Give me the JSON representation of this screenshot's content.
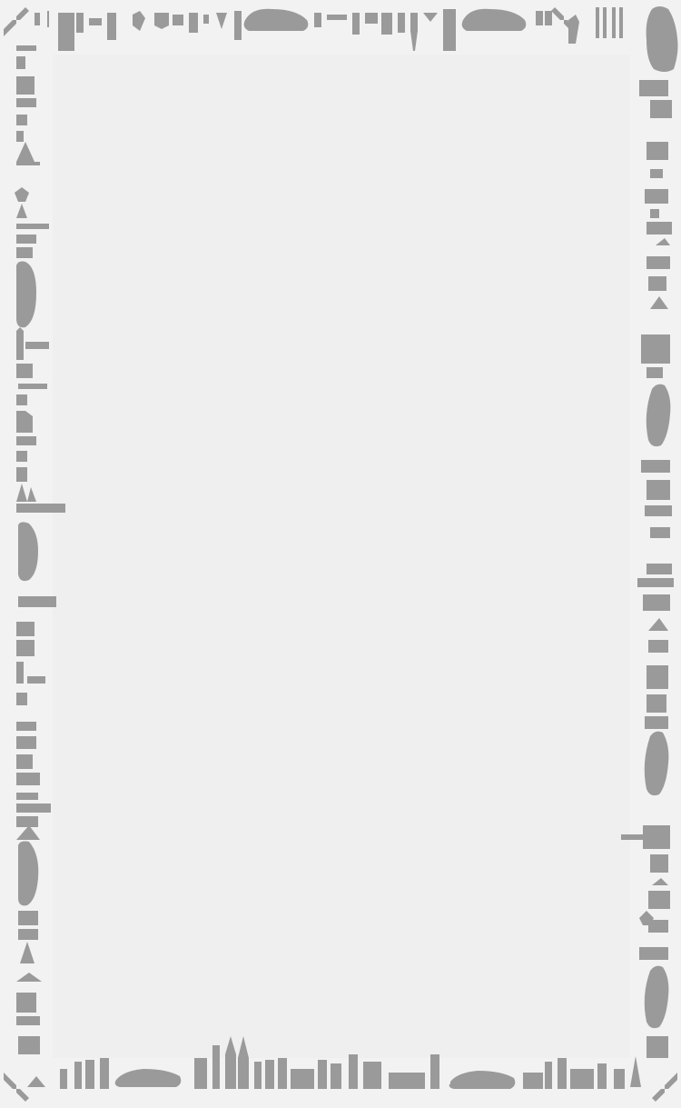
{
  "poster": {
    "title": "",
    "credits_left": "",
    "credits_right": ""
  },
  "colors": {
    "background": "#f2f2f2",
    "silhouette": "#9a9a9a",
    "label": "#7d7d7d"
  },
  "icons": [
    "corner-arrow-icon",
    "building-silhouette-icon",
    "taxi-car-icon",
    "skyscraper-icon",
    "bridge-icon"
  ]
}
